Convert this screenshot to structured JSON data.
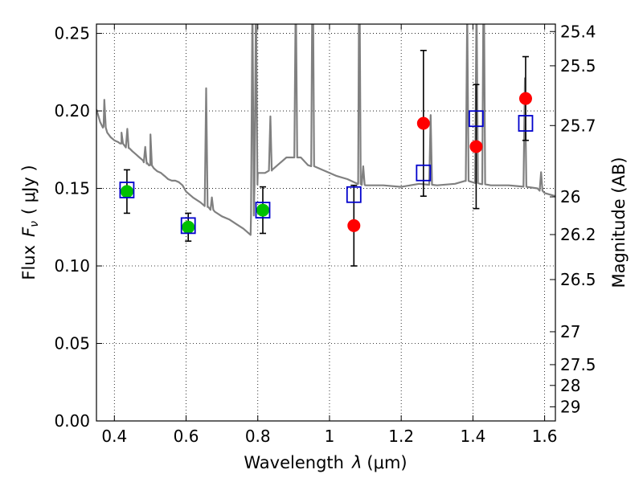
{
  "chart_data": {
    "type": "scatter",
    "xlabel_text": "Wavelength",
    "xlabel_symbol": "λ",
    "xlabel_unit": "(μm)",
    "ylabel_text": "Flux",
    "ylabel_symbol": "F",
    "ylabel_sub": "ν",
    "ylabel_unit": "( μJy )",
    "ylabel_right": "Magnitude (AB)",
    "xlim": [
      0.35,
      1.63
    ],
    "ylim": [
      0.0,
      0.256
    ],
    "grid": true,
    "x_ticks": [
      0.4,
      0.6,
      0.8,
      1.0,
      1.2,
      1.4,
      1.6
    ],
    "x_tick_labels": [
      "0.4",
      "0.6",
      "0.8",
      "1",
      "1.2",
      "1.4",
      "1.6"
    ],
    "y_ticks": [
      0.0,
      0.05,
      0.1,
      0.15,
      0.2,
      0.25
    ],
    "y_tick_labels": [
      "0.00",
      "0.05",
      "0.10",
      "0.15",
      "0.20",
      "0.25"
    ],
    "right_ticks": [
      {
        "label": "25.4",
        "value": 25.4
      },
      {
        "label": "25.5",
        "value": 25.5
      },
      {
        "label": "25.7",
        "value": 25.7
      },
      {
        "label": "26",
        "value": 26.0
      },
      {
        "label": "26.2",
        "value": 26.2
      },
      {
        "label": "26.5",
        "value": 26.5
      },
      {
        "label": "27",
        "value": 27.0
      },
      {
        "label": "27.5",
        "value": 27.5
      },
      {
        "label": "28",
        "value": 28.0
      },
      {
        "label": "29",
        "value": 29.0
      }
    ],
    "colors": {
      "spectrum": "#808080",
      "detection": "#00c000",
      "measured": "#ff0000",
      "model_box": "#0000cc",
      "errorbar": "#000000",
      "grid": "#000000"
    },
    "model_spectrum": {
      "x": [
        0.35,
        0.36,
        0.37,
        0.38,
        0.39,
        0.4,
        0.41,
        0.42,
        0.43,
        0.44,
        0.45,
        0.46,
        0.47,
        0.48,
        0.49,
        0.5,
        0.51,
        0.52,
        0.53,
        0.54,
        0.55,
        0.56,
        0.57,
        0.58,
        0.59,
        0.6,
        0.61,
        0.62,
        0.64,
        0.66,
        0.68,
        0.7,
        0.72,
        0.74,
        0.76,
        0.78,
        0.79,
        0.8,
        0.82,
        0.84,
        0.86,
        0.88,
        0.9,
        0.92,
        0.94,
        0.96,
        0.98,
        1.0,
        1.02,
        1.05,
        1.08,
        1.1,
        1.15,
        1.2,
        1.25,
        1.3,
        1.35,
        1.38,
        1.42,
        1.45,
        1.5,
        1.55,
        1.58,
        1.6,
        1.63
      ],
      "y": [
        0.201,
        0.193,
        0.19,
        0.186,
        0.183,
        0.181,
        0.18,
        0.179,
        0.177,
        0.176,
        0.174,
        0.172,
        0.17,
        0.168,
        0.166,
        0.165,
        0.163,
        0.161,
        0.16,
        0.158,
        0.156,
        0.155,
        0.155,
        0.154,
        0.152,
        0.148,
        0.146,
        0.144,
        0.141,
        0.138,
        0.135,
        0.132,
        0.13,
        0.127,
        0.124,
        0.12,
        0.145,
        0.16,
        0.16,
        0.162,
        0.166,
        0.17,
        0.17,
        0.17,
        0.165,
        0.164,
        0.162,
        0.16,
        0.158,
        0.156,
        0.153,
        0.152,
        0.152,
        0.151,
        0.153,
        0.152,
        0.153,
        0.155,
        0.153,
        0.152,
        0.152,
        0.151,
        0.15,
        0.147,
        0.145
      ]
    },
    "emission_lines": [
      {
        "x": 0.372,
        "height": 0.018
      },
      {
        "x": 0.42,
        "height": 0.007
      },
      {
        "x": 0.436,
        "height": 0.012
      },
      {
        "x": 0.486,
        "height": 0.01
      },
      {
        "x": 0.5007,
        "height": 0.02
      },
      {
        "x": 0.656,
        "height": 0.076
      },
      {
        "x": 0.672,
        "height": 0.008
      },
      {
        "x": 0.785,
        "height": 0.14
      },
      {
        "x": 0.795,
        "height": 0.12
      },
      {
        "x": 0.835,
        "height": 0.035
      },
      {
        "x": 0.906,
        "height": 0.11
      },
      {
        "x": 0.953,
        "height": 0.15
      },
      {
        "x": 1.083,
        "height": 0.16
      },
      {
        "x": 1.094,
        "height": 0.012
      },
      {
        "x": 1.282,
        "height": 0.045
      },
      {
        "x": 1.384,
        "height": 0.11
      },
      {
        "x": 1.41,
        "height": 0.12
      },
      {
        "x": 1.43,
        "height": 0.15
      },
      {
        "x": 1.545,
        "height": 0.07
      },
      {
        "x": 1.59,
        "height": 0.012
      }
    ],
    "series": [
      {
        "kind": "points_green",
        "points": [
          {
            "x": 0.435,
            "y": 0.148,
            "err": 0.014
          },
          {
            "x": 0.606,
            "y": 0.125,
            "err": 0.009
          },
          {
            "x": 0.814,
            "y": 0.136,
            "err": 0.015
          }
        ]
      },
      {
        "kind": "points_red",
        "points": [
          {
            "x": 1.068,
            "y": 0.126,
            "err": 0.026
          },
          {
            "x": 1.262,
            "y": 0.192,
            "err": 0.047
          },
          {
            "x": 1.409,
            "y": 0.177,
            "err": 0.04
          },
          {
            "x": 1.547,
            "y": 0.208,
            "err": 0.027
          }
        ]
      },
      {
        "kind": "model_boxes",
        "points": [
          {
            "x": 0.435,
            "y": 0.149
          },
          {
            "x": 0.606,
            "y": 0.126
          },
          {
            "x": 0.814,
            "y": 0.136
          },
          {
            "x": 1.068,
            "y": 0.146
          },
          {
            "x": 1.262,
            "y": 0.16
          },
          {
            "x": 1.409,
            "y": 0.195
          },
          {
            "x": 1.547,
            "y": 0.192
          }
        ]
      }
    ]
  }
}
